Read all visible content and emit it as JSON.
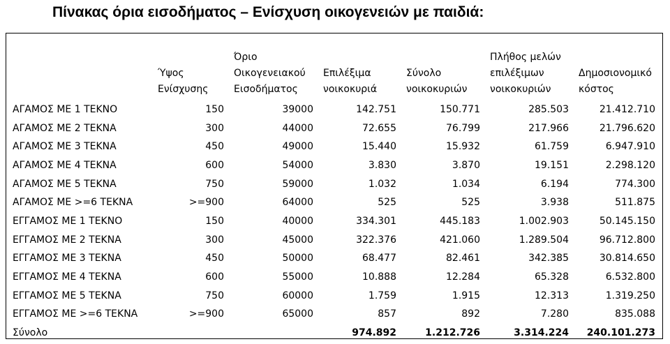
{
  "title": "Πίνακας όρια εισοδήματος – Ενίσχυση οικογενειών με παιδιά:",
  "table": {
    "headers": [
      "",
      "Ύψος Ενίσχυσης",
      "Όριο Οικογενειακού Εισοδήματος",
      "Επιλέξιμα νοικοκυριά",
      "Σύνολο νοικοκυριών",
      "Πλήθος μελών επιλέξιμων νοικοκυριών",
      "Δημοσιονομικό κόστος"
    ],
    "rows": [
      [
        "ΑΓΑΜΟΣ ΜΕ 1 ΤΕΚΝΟ",
        "150",
        "39000",
        "142.751",
        "150.771",
        "285.503",
        "21.412.710"
      ],
      [
        "ΑΓΑΜΟΣ ΜΕ 2 ΤΕΚΝΑ",
        "300",
        "44000",
        "72.655",
        "76.799",
        "217.966",
        "21.796.620"
      ],
      [
        "ΑΓΑΜΟΣ ΜΕ 3 ΤΕΚΝΑ",
        "450",
        "49000",
        "15.440",
        "15.932",
        "61.759",
        "6.947.910"
      ],
      [
        "ΑΓΑΜΟΣ ΜΕ 4 ΤΕΚΝΑ",
        "600",
        "54000",
        "3.830",
        "3.870",
        "19.151",
        "2.298.120"
      ],
      [
        "ΑΓΑΜΟΣ ΜΕ 5 ΤΕΚΝΑ",
        "750",
        "59000",
        "1.032",
        "1.034",
        "6.194",
        "774.300"
      ],
      [
        "ΑΓΑΜΟΣ ΜΕ >=6 ΤΕΚΝΑ",
        ">=900",
        "64000",
        "525",
        "525",
        "3.938",
        "511.875"
      ],
      [
        "ΕΓΓΑΜΟΣ ΜΕ 1 ΤΕΚΝΟ",
        "150",
        "40000",
        "334.301",
        "445.183",
        "1.002.903",
        "50.145.150"
      ],
      [
        "ΕΓΓΑΜΟΣ ΜΕ 2 ΤΕΚΝΑ",
        "300",
        "45000",
        "322.376",
        "421.060",
        "1.289.504",
        "96.712.800"
      ],
      [
        "ΕΓΓΑΜΟΣ ΜΕ 3 ΤΕΚΝΑ",
        "450",
        "50000",
        "68.477",
        "82.461",
        "342.385",
        "30.814.650"
      ],
      [
        "ΕΓΓΑΜΟΣ ΜΕ 4 ΤΕΚΝΑ",
        "600",
        "55000",
        "10.888",
        "12.284",
        "65.328",
        "6.532.800"
      ],
      [
        "ΕΓΓΑΜΟΣ ΜΕ 5 ΤΕΚΝΑ",
        "750",
        "60000",
        "1.759",
        "1.915",
        "12.313",
        "1.319.250"
      ],
      [
        "ΕΓΓΑΜΟΣ ΜΕ >=6 ΤΕΚΝΑ",
        ">=900",
        "65000",
        "857",
        "892",
        "7.280",
        "835.088"
      ]
    ],
    "total": [
      "Σύνολο",
      "",
      "",
      "974.892",
      "1.212.726",
      "3.314.224",
      "240.101.273"
    ]
  }
}
